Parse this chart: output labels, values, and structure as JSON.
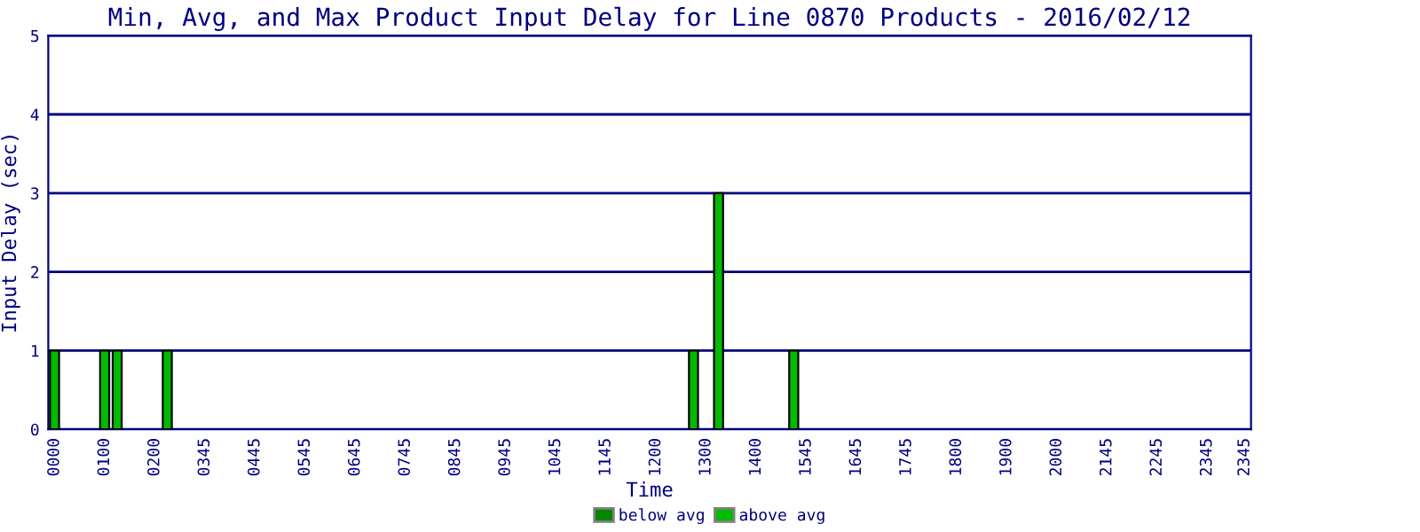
{
  "chart_data": {
    "type": "bar",
    "title": "Min, Avg, and Max Product Input Delay for Line 0870 Products - 2016/02/12",
    "xlabel": "Time",
    "ylabel": "Input Delay (sec)",
    "categories": [
      "0000",
      null,
      null,
      null,
      "0100",
      null,
      null,
      null,
      "0200",
      null,
      null,
      null,
      "0345",
      null,
      null,
      null,
      "0445",
      null,
      null,
      null,
      "0545",
      null,
      null,
      null,
      "0645",
      null,
      null,
      null,
      "0745",
      null,
      null,
      null,
      "0845",
      null,
      null,
      null,
      "0945",
      null,
      null,
      null,
      "1045",
      null,
      null,
      null,
      "1145",
      null,
      null,
      null,
      "1200",
      null,
      null,
      null,
      "1300",
      null,
      null,
      null,
      "1400",
      null,
      null,
      null,
      "1545",
      null,
      null,
      null,
      "1645",
      null,
      null,
      null,
      "1745",
      null,
      null,
      null,
      "1800",
      null,
      null,
      null,
      "1900",
      null,
      null,
      null,
      "2000",
      null,
      null,
      null,
      "2145",
      null,
      null,
      null,
      "2245",
      null,
      null,
      null,
      "2345",
      null,
      null,
      "2345"
    ],
    "series": [
      {
        "name": "below avg",
        "color": "#008800",
        "values": [
          null,
          null,
          null,
          null,
          null,
          null,
          null,
          null,
          null,
          null,
          null,
          null,
          null,
          null,
          null,
          null,
          null,
          null,
          null,
          null,
          null,
          null,
          null,
          null,
          null,
          null,
          null,
          null,
          null,
          null,
          null,
          null,
          null,
          null,
          null,
          null,
          null,
          null,
          null,
          null,
          null,
          null,
          null,
          null,
          null,
          null,
          null,
          null,
          null,
          null,
          null,
          null,
          null,
          null,
          null,
          null,
          null,
          null,
          null,
          null,
          null,
          null,
          null,
          null,
          null,
          null,
          null,
          null,
          null,
          null,
          null,
          null,
          null,
          null,
          null,
          null,
          null,
          null,
          null,
          null,
          null,
          null,
          null,
          null,
          null,
          null,
          null,
          null,
          null,
          null,
          null,
          null,
          null,
          null,
          null,
          null
        ]
      },
      {
        "name": "above avg",
        "color": "#00bb00",
        "values": [
          1,
          null,
          null,
          null,
          1,
          1,
          null,
          null,
          null,
          1,
          null,
          null,
          null,
          null,
          null,
          null,
          null,
          null,
          null,
          null,
          null,
          null,
          null,
          null,
          null,
          null,
          null,
          null,
          null,
          null,
          null,
          null,
          null,
          null,
          null,
          null,
          null,
          null,
          null,
          null,
          null,
          null,
          null,
          null,
          null,
          null,
          null,
          null,
          null,
          null,
          null,
          1,
          null,
          3,
          null,
          null,
          null,
          null,
          null,
          1,
          null,
          null,
          null,
          null,
          null,
          null,
          null,
          null,
          null,
          null,
          null,
          null,
          null,
          null,
          null,
          null,
          null,
          null,
          null,
          null,
          null,
          null,
          null,
          null,
          null,
          null,
          null,
          null,
          null,
          null,
          null,
          null,
          null,
          null,
          null,
          null
        ]
      }
    ],
    "ylim": [
      0,
      5
    ],
    "yticks": [
      0,
      1,
      2,
      3,
      4,
      5
    ],
    "grid": "y",
    "legend": "bottom"
  }
}
